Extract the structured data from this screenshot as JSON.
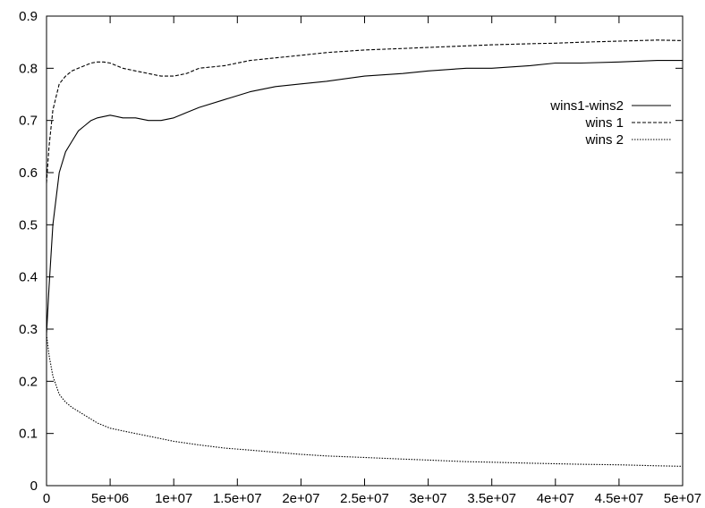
{
  "chart_data": {
    "type": "line",
    "title": "",
    "xlabel": "",
    "ylabel": "",
    "xlim": [
      0,
      50000000
    ],
    "ylim": [
      0,
      0.9
    ],
    "xticks": [
      0,
      5000000,
      10000000,
      15000000,
      20000000,
      25000000,
      30000000,
      35000000,
      40000000,
      45000000,
      50000000
    ],
    "xtick_labels": [
      "0",
      "5e+06",
      "1e+07",
      "1.5e+07",
      "2e+07",
      "2.5e+07",
      "3e+07",
      "3.5e+07",
      "4e+07",
      "4.5e+07",
      "5e+07"
    ],
    "yticks": [
      0,
      0.1,
      0.2,
      0.3,
      0.4,
      0.5,
      0.6,
      0.7,
      0.8,
      0.9
    ],
    "ytick_labels": [
      "0",
      "0.1",
      "0.2",
      "0.3",
      "0.4",
      "0.5",
      "0.6",
      "0.7",
      "0.8",
      "0.9"
    ],
    "grid": false,
    "legend_position": "top-right",
    "series": [
      {
        "name": "wins1-wins2",
        "style": "solid",
        "color": "#000000",
        "x": [
          0,
          200000,
          500000,
          1000000,
          1500000,
          2000000,
          2500000,
          3000000,
          3500000,
          4000000,
          5000000,
          6000000,
          7000000,
          8000000,
          9000000,
          10000000,
          11000000,
          12000000,
          14000000,
          16000000,
          18000000,
          20000000,
          22000000,
          25000000,
          28000000,
          30000000,
          33000000,
          35000000,
          38000000,
          40000000,
          42000000,
          45000000,
          48000000,
          50000000
        ],
        "y": [
          0.29,
          0.38,
          0.5,
          0.6,
          0.64,
          0.66,
          0.68,
          0.69,
          0.7,
          0.705,
          0.71,
          0.705,
          0.705,
          0.7,
          0.7,
          0.705,
          0.715,
          0.725,
          0.74,
          0.755,
          0.765,
          0.77,
          0.775,
          0.785,
          0.79,
          0.795,
          0.8,
          0.8,
          0.805,
          0.81,
          0.81,
          0.812,
          0.815,
          0.815
        ]
      },
      {
        "name": "wins 1",
        "style": "dashed",
        "color": "#000000",
        "x": [
          0,
          200000,
          500000,
          1000000,
          1500000,
          2000000,
          2500000,
          3000000,
          3500000,
          4000000,
          4500000,
          5000000,
          6000000,
          7000000,
          8000000,
          9000000,
          10000000,
          11000000,
          12000000,
          14000000,
          16000000,
          18000000,
          20000000,
          22000000,
          25000000,
          28000000,
          30000000,
          33000000,
          35000000,
          38000000,
          40000000,
          42000000,
          45000000,
          48000000,
          50000000
        ],
        "y": [
          0.58,
          0.65,
          0.72,
          0.77,
          0.785,
          0.795,
          0.8,
          0.805,
          0.81,
          0.812,
          0.812,
          0.81,
          0.8,
          0.795,
          0.79,
          0.785,
          0.785,
          0.79,
          0.8,
          0.805,
          0.815,
          0.82,
          0.825,
          0.83,
          0.835,
          0.838,
          0.84,
          0.843,
          0.845,
          0.847,
          0.848,
          0.85,
          0.852,
          0.854,
          0.853
        ]
      },
      {
        "name": "wins 2",
        "style": "dotted",
        "color": "#000000",
        "x": [
          0,
          200000,
          500000,
          1000000,
          1500000,
          2000000,
          3000000,
          4000000,
          5000000,
          6000000,
          7000000,
          8000000,
          9000000,
          10000000,
          12000000,
          14000000,
          16000000,
          18000000,
          20000000,
          22000000,
          25000000,
          28000000,
          30000000,
          33000000,
          35000000,
          38000000,
          40000000,
          42000000,
          45000000,
          48000000,
          50000000
        ],
        "y": [
          0.29,
          0.25,
          0.21,
          0.175,
          0.16,
          0.15,
          0.135,
          0.12,
          0.11,
          0.105,
          0.1,
          0.095,
          0.09,
          0.085,
          0.078,
          0.072,
          0.068,
          0.064,
          0.06,
          0.057,
          0.054,
          0.051,
          0.049,
          0.046,
          0.045,
          0.043,
          0.042,
          0.041,
          0.04,
          0.038,
          0.037
        ]
      }
    ]
  }
}
